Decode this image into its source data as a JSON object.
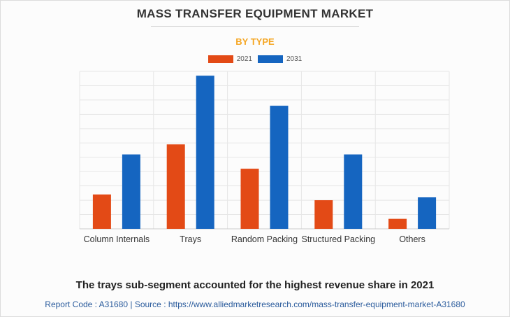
{
  "chart_data": {
    "type": "bar",
    "title": "MASS TRANSFER EQUIPMENT MARKET",
    "subtitle": "BY TYPE",
    "categories": [
      "Column Internals",
      "Trays",
      "Random Packing",
      "Structured Packing",
      "Others"
    ],
    "series": [
      {
        "name": "2021",
        "color": "#e34a16",
        "values": [
          24,
          59,
          42,
          20,
          7
        ]
      },
      {
        "name": "2031",
        "color": "#1565c0",
        "values": [
          52,
          107,
          86,
          52,
          22
        ]
      }
    ],
    "ylim": [
      0,
      110
    ],
    "ylabel": "",
    "xlabel": "",
    "y_tick_labels_shown": false,
    "grid": true,
    "legend_position": "top-center"
  },
  "caption": "The trays sub-segment accounted for the highest revenue share in 2021",
  "footer": "Report Code : A31680  |  Source : https://www.alliedmarketresearch.com/mass-transfer-equipment-market-A31680"
}
